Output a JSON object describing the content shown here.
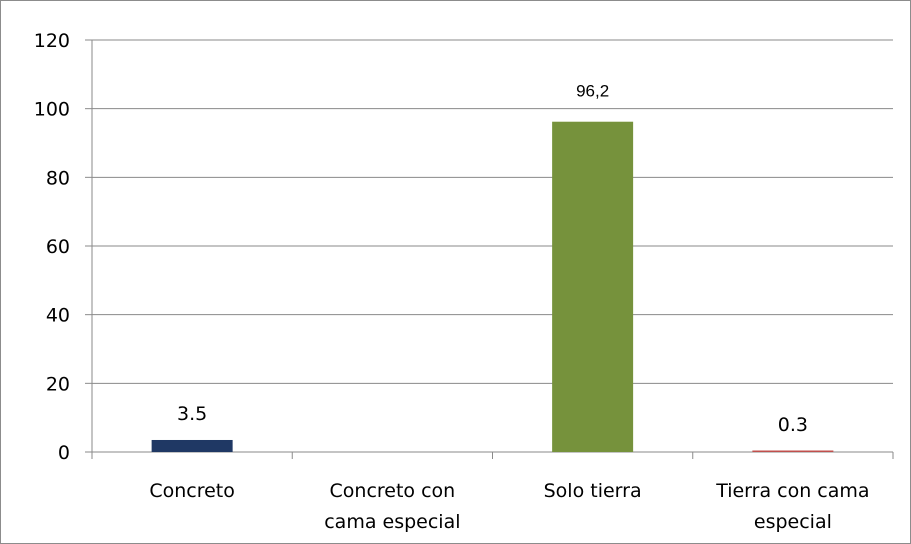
{
  "chart_data": {
    "type": "bar",
    "categories": [
      [
        "Concreto"
      ],
      [
        "Concreto con",
        "cama especial"
      ],
      [
        "Solo tierra"
      ],
      [
        "Tierra con cama",
        "especial"
      ]
    ],
    "values": [
      3.5,
      0,
      96.2,
      0.3
    ],
    "data_labels": [
      "3.5",
      "",
      "96,2",
      "0.3"
    ],
    "bar_colors": [
      "#1f3864",
      "#1f3864",
      "#76923c",
      "#c0504d"
    ],
    "ylim": [
      0,
      120
    ],
    "yticks": [
      "0",
      "20",
      "40",
      "60",
      "80",
      "100",
      "120"
    ],
    "grid": true,
    "legend": "none",
    "title": "",
    "xlabel": "",
    "ylabel": ""
  }
}
